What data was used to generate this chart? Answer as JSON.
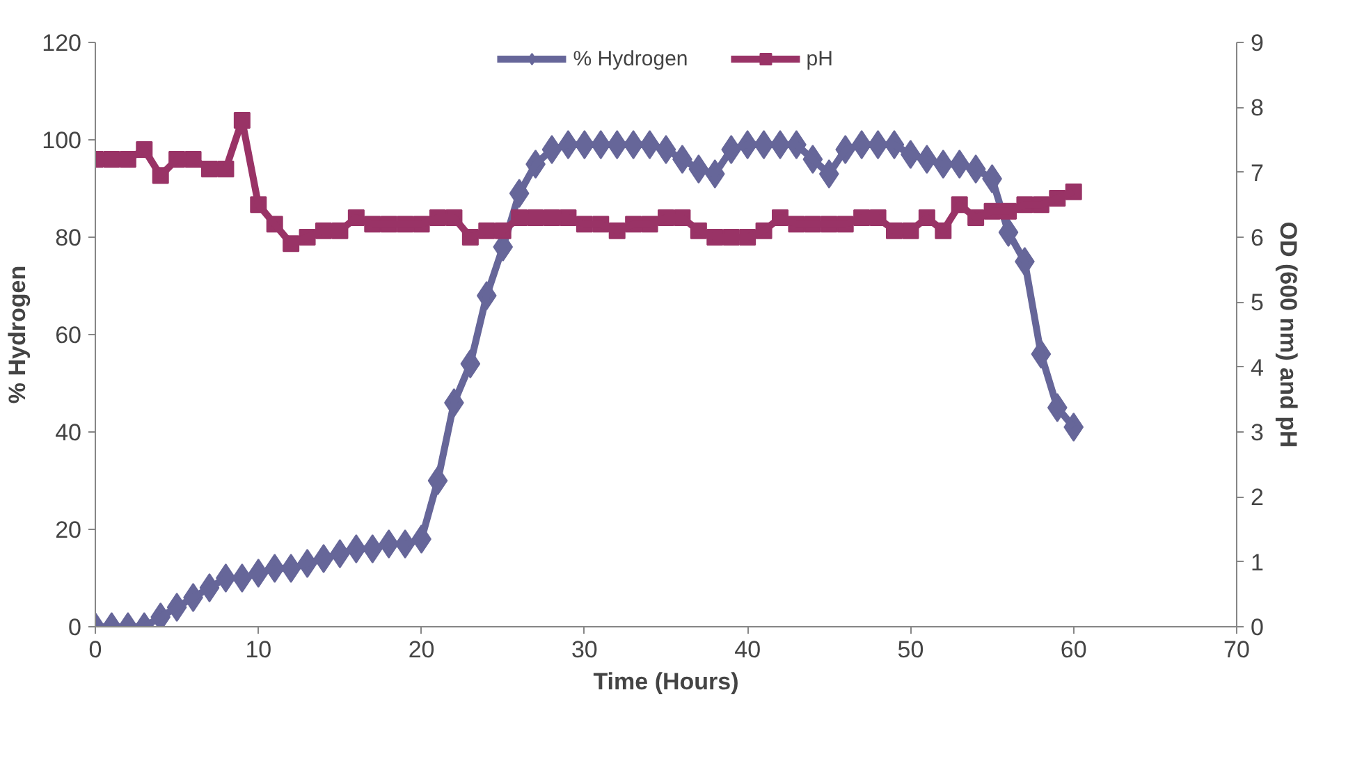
{
  "chart_data": {
    "type": "line",
    "xlabel": "Time (Hours)",
    "ylabel": "% Hydrogen",
    "y2label": "OD (600 nm) and pH",
    "x": [
      0,
      1,
      2,
      3,
      4,
      5,
      6,
      7,
      8,
      9,
      10,
      11,
      12,
      13,
      14,
      15,
      16,
      17,
      18,
      19,
      20,
      21,
      22,
      23,
      24,
      25,
      26,
      27,
      28,
      29,
      30,
      31,
      32,
      33,
      34,
      35,
      36,
      37,
      38,
      39,
      40,
      41,
      42,
      43,
      44,
      45,
      46,
      47,
      48,
      49,
      50,
      51,
      52,
      53,
      54,
      55,
      56,
      57,
      58,
      59,
      60
    ],
    "series": [
      {
        "name": "% Hydrogen",
        "color": "#666699",
        "marker": "diamond",
        "values": [
          0,
          0,
          0,
          0,
          2,
          4,
          6,
          8,
          10,
          10,
          11,
          12,
          12,
          13,
          14,
          15,
          16,
          16,
          17,
          17,
          18,
          30,
          46,
          54,
          68,
          78,
          89,
          95,
          98,
          99,
          99,
          99,
          99,
          99,
          99,
          98,
          96,
          94,
          93,
          98,
          99,
          99,
          99,
          99,
          96,
          93,
          98,
          99,
          99,
          99,
          97,
          96,
          95,
          95,
          94,
          92,
          81,
          75,
          56,
          45,
          41
        ]
      },
      {
        "name": "pH",
        "color": "#993366",
        "marker": "square",
        "axis": "y2",
        "values": [
          7.2,
          7.2,
          7.2,
          7.35,
          6.95,
          7.2,
          7.2,
          7.05,
          7.05,
          7.8,
          6.5,
          6.2,
          5.9,
          6.0,
          6.1,
          6.1,
          6.3,
          6.2,
          6.2,
          6.2,
          6.2,
          6.3,
          6.3,
          6.0,
          6.1,
          6.1,
          6.3,
          6.3,
          6.3,
          6.3,
          6.2,
          6.2,
          6.1,
          6.2,
          6.2,
          6.3,
          6.3,
          6.1,
          6.0,
          6.0,
          6.0,
          6.1,
          6.3,
          6.2,
          6.2,
          6.2,
          6.2,
          6.3,
          6.3,
          6.1,
          6.1,
          6.3,
          6.1,
          6.5,
          6.3,
          6.4,
          6.4,
          6.5,
          6.5,
          6.6,
          6.7
        ]
      }
    ],
    "xlim": [
      0,
      70
    ],
    "xticks": [
      0,
      10,
      20,
      30,
      40,
      50,
      60,
      70
    ],
    "ylim": [
      0,
      120
    ],
    "yticks": [
      0,
      20,
      40,
      60,
      80,
      100,
      120
    ],
    "y2lim": [
      0,
      9
    ],
    "y2ticks": [
      0,
      1,
      2,
      3,
      4,
      5,
      6,
      7,
      8,
      9
    ],
    "grid": false,
    "legend": "top",
    "line_style": "solid"
  }
}
